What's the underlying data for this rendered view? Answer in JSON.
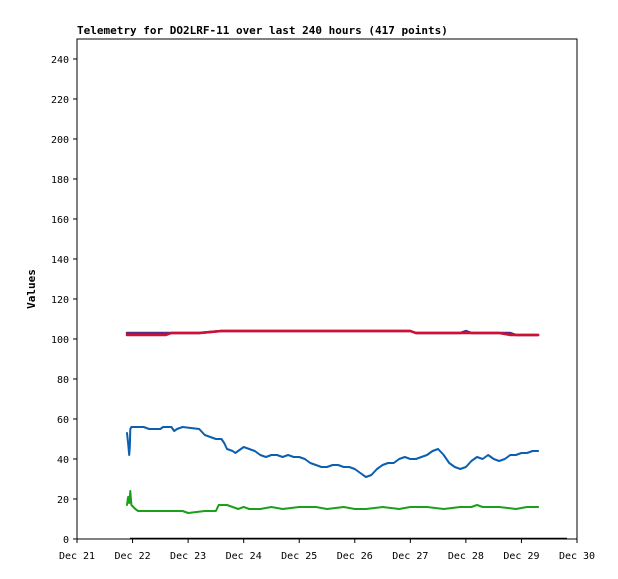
{
  "chart_data": {
    "type": "line",
    "title": "Telemetry for DO2LRF-11 over last 240 hours (417 points)",
    "xlabel": "",
    "ylabel": "Values",
    "xlim": [
      0,
      9
    ],
    "ylim": [
      0,
      250
    ],
    "x_ticks": [
      {
        "x": 0,
        "label": "Dec 21"
      },
      {
        "x": 1,
        "label": "Dec 22"
      },
      {
        "x": 2,
        "label": "Dec 23"
      },
      {
        "x": 3,
        "label": "Dec 24"
      },
      {
        "x": 4,
        "label": "Dec 25"
      },
      {
        "x": 5,
        "label": "Dec 26"
      },
      {
        "x": 6,
        "label": "Dec 27"
      },
      {
        "x": 7,
        "label": "Dec 28"
      },
      {
        "x": 8,
        "label": "Dec 29"
      },
      {
        "x": 9,
        "label": "Dec 30"
      }
    ],
    "y_ticks": [
      0,
      20,
      40,
      60,
      80,
      100,
      120,
      140,
      160,
      180,
      200,
      220,
      240
    ],
    "grid": false,
    "legend": "none",
    "series": [
      {
        "color": "#0b5fb0",
        "points": [
          [
            0.9,
            53
          ],
          [
            0.92,
            48
          ],
          [
            0.94,
            42
          ],
          [
            0.95,
            46
          ],
          [
            0.96,
            55
          ],
          [
            0.98,
            56
          ],
          [
            1.2,
            56
          ],
          [
            1.3,
            55
          ],
          [
            1.5,
            55
          ],
          [
            1.55,
            56
          ],
          [
            1.7,
            56
          ],
          [
            1.75,
            54
          ],
          [
            1.8,
            55
          ],
          [
            1.9,
            56
          ],
          [
            2.2,
            55
          ],
          [
            2.3,
            52
          ],
          [
            2.4,
            51
          ],
          [
            2.5,
            50
          ],
          [
            2.6,
            50
          ],
          [
            2.65,
            48
          ],
          [
            2.7,
            45
          ],
          [
            2.8,
            44
          ],
          [
            2.85,
            43
          ],
          [
            2.9,
            44
          ],
          [
            3.0,
            46
          ],
          [
            3.1,
            45
          ],
          [
            3.2,
            44
          ],
          [
            3.3,
            42
          ],
          [
            3.4,
            41
          ],
          [
            3.5,
            42
          ],
          [
            3.6,
            42
          ],
          [
            3.7,
            41
          ],
          [
            3.8,
            42
          ],
          [
            3.9,
            41
          ],
          [
            4.0,
            41
          ],
          [
            4.1,
            40
          ],
          [
            4.2,
            38
          ],
          [
            4.3,
            37
          ],
          [
            4.4,
            36
          ],
          [
            4.5,
            36
          ],
          [
            4.6,
            37
          ],
          [
            4.7,
            37
          ],
          [
            4.8,
            36
          ],
          [
            4.9,
            36
          ],
          [
            5.0,
            35
          ],
          [
            5.1,
            33
          ],
          [
            5.2,
            31
          ],
          [
            5.3,
            32
          ],
          [
            5.4,
            35
          ],
          [
            5.5,
            37
          ],
          [
            5.6,
            38
          ],
          [
            5.7,
            38
          ],
          [
            5.8,
            40
          ],
          [
            5.9,
            41
          ],
          [
            6.0,
            40
          ],
          [
            6.1,
            40
          ],
          [
            6.2,
            41
          ],
          [
            6.3,
            42
          ],
          [
            6.4,
            44
          ],
          [
            6.5,
            45
          ],
          [
            6.6,
            42
          ],
          [
            6.7,
            38
          ],
          [
            6.8,
            36
          ],
          [
            6.9,
            35
          ],
          [
            7.0,
            36
          ],
          [
            7.1,
            39
          ],
          [
            7.2,
            41
          ],
          [
            7.3,
            40
          ],
          [
            7.4,
            42
          ],
          [
            7.5,
            40
          ],
          [
            7.6,
            39
          ],
          [
            7.7,
            40
          ],
          [
            7.8,
            42
          ],
          [
            7.9,
            42
          ],
          [
            8.0,
            43
          ],
          [
            8.1,
            43
          ],
          [
            8.2,
            44
          ],
          [
            8.3,
            44
          ]
        ]
      },
      {
        "color": "#1aa01a",
        "points": [
          [
            0.9,
            17
          ],
          [
            0.92,
            21
          ],
          [
            0.94,
            18
          ],
          [
            0.96,
            24
          ],
          [
            0.98,
            17
          ],
          [
            1.05,
            15
          ],
          [
            1.1,
            14
          ],
          [
            1.5,
            14
          ],
          [
            1.9,
            14
          ],
          [
            2.0,
            13
          ],
          [
            2.3,
            14
          ],
          [
            2.5,
            14
          ],
          [
            2.55,
            17
          ],
          [
            2.7,
            17
          ],
          [
            2.8,
            16
          ],
          [
            2.9,
            15
          ],
          [
            3.0,
            16
          ],
          [
            3.1,
            15
          ],
          [
            3.3,
            15
          ],
          [
            3.5,
            16
          ],
          [
            3.7,
            15
          ],
          [
            4.0,
            16
          ],
          [
            4.3,
            16
          ],
          [
            4.5,
            15
          ],
          [
            4.8,
            16
          ],
          [
            5.0,
            15
          ],
          [
            5.2,
            15
          ],
          [
            5.5,
            16
          ],
          [
            5.8,
            15
          ],
          [
            6.0,
            16
          ],
          [
            6.3,
            16
          ],
          [
            6.6,
            15
          ],
          [
            6.9,
            16
          ],
          [
            7.1,
            16
          ],
          [
            7.2,
            17
          ],
          [
            7.3,
            16
          ],
          [
            7.6,
            16
          ],
          [
            7.9,
            15
          ],
          [
            8.1,
            16
          ],
          [
            8.3,
            16
          ]
        ]
      },
      {
        "color": "#5b2a86",
        "points": [
          [
            0.9,
            103
          ],
          [
            1.5,
            103
          ],
          [
            1.8,
            103
          ],
          [
            2.0,
            103
          ],
          [
            2.2,
            103
          ],
          [
            2.6,
            104
          ],
          [
            3.0,
            104
          ],
          [
            4.0,
            104
          ],
          [
            5.0,
            104
          ],
          [
            5.5,
            104
          ],
          [
            6.0,
            104
          ],
          [
            6.1,
            103
          ],
          [
            6.6,
            103
          ],
          [
            6.9,
            103
          ],
          [
            7.0,
            104
          ],
          [
            7.1,
            103
          ],
          [
            7.6,
            103
          ],
          [
            7.8,
            103
          ],
          [
            7.9,
            102
          ],
          [
            8.3,
            102
          ]
        ]
      },
      {
        "color": "#cc1133",
        "points": [
          [
            0.9,
            102
          ],
          [
            1.5,
            102
          ],
          [
            1.6,
            102
          ],
          [
            1.7,
            103
          ],
          [
            2.2,
            103
          ],
          [
            2.6,
            104
          ],
          [
            3.0,
            104
          ],
          [
            4.0,
            104
          ],
          [
            5.0,
            104
          ],
          [
            5.5,
            104
          ],
          [
            6.0,
            104
          ],
          [
            6.1,
            103
          ],
          [
            6.6,
            103
          ],
          [
            7.0,
            103
          ],
          [
            7.6,
            103
          ],
          [
            7.8,
            102
          ],
          [
            8.3,
            102
          ]
        ]
      }
    ]
  }
}
